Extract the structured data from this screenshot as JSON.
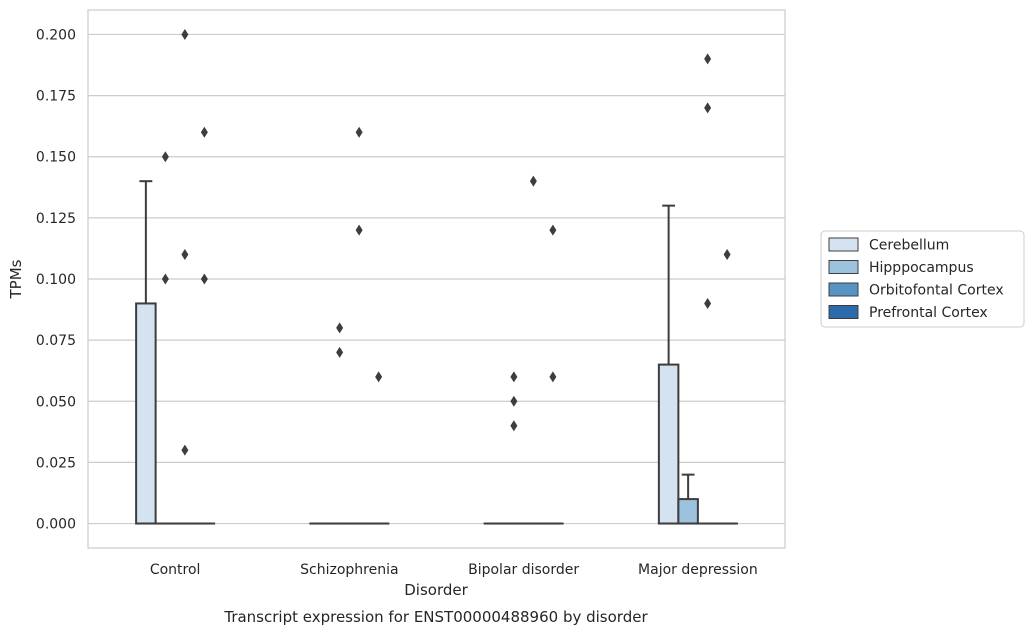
{
  "chart_data": {
    "type": "box",
    "title": "Transcript expression for ENST00000488960 by disorder",
    "xlabel": "Disorder",
    "ylabel": "TPMs",
    "ylim": [
      -0.01,
      0.21
    ],
    "yticks": [
      0.0,
      0.025,
      0.05,
      0.075,
      0.1,
      0.125,
      0.15,
      0.175,
      0.2
    ],
    "ytick_labels": [
      "0.000",
      "0.025",
      "0.050",
      "0.075",
      "0.100",
      "0.125",
      "0.150",
      "0.175",
      "0.200"
    ],
    "grid": true,
    "legend_position": "right",
    "categories": [
      "Control",
      "Schizophrenia",
      "Bipolar disorder",
      "Major depression"
    ],
    "series": [
      {
        "name": "Cerebellum",
        "color": "#d5e3f1"
      },
      {
        "name": "Hipppocampus",
        "color": "#9cc2de"
      },
      {
        "name": "Orbitofontal Cortex",
        "color": "#5894c3"
      },
      {
        "name": "Prefrontal Cortex",
        "color": "#2c6aab"
      }
    ],
    "boxes": [
      {
        "category": 0,
        "series": 0,
        "q1": 0.0,
        "median": 0.0,
        "q3": 0.09,
        "whisker_low": 0.0,
        "whisker_high": 0.14
      },
      {
        "category": 0,
        "series": 1,
        "q1": 0.0,
        "median": 0.0,
        "q3": 0.0,
        "whisker_low": 0.0,
        "whisker_high": 0.0
      },
      {
        "category": 0,
        "series": 2,
        "q1": 0.0,
        "median": 0.0,
        "q3": 0.0,
        "whisker_low": 0.0,
        "whisker_high": 0.0
      },
      {
        "category": 0,
        "series": 3,
        "q1": 0.0,
        "median": 0.0,
        "q3": 0.0,
        "whisker_low": 0.0,
        "whisker_high": 0.0
      },
      {
        "category": 1,
        "series": 0,
        "q1": 0.0,
        "median": 0.0,
        "q3": 0.0,
        "whisker_low": 0.0,
        "whisker_high": 0.0
      },
      {
        "category": 1,
        "series": 1,
        "q1": 0.0,
        "median": 0.0,
        "q3": 0.0,
        "whisker_low": 0.0,
        "whisker_high": 0.0
      },
      {
        "category": 1,
        "series": 2,
        "q1": 0.0,
        "median": 0.0,
        "q3": 0.0,
        "whisker_low": 0.0,
        "whisker_high": 0.0
      },
      {
        "category": 1,
        "series": 3,
        "q1": 0.0,
        "median": 0.0,
        "q3": 0.0,
        "whisker_low": 0.0,
        "whisker_high": 0.0
      },
      {
        "category": 2,
        "series": 0,
        "q1": 0.0,
        "median": 0.0,
        "q3": 0.0,
        "whisker_low": 0.0,
        "whisker_high": 0.0
      },
      {
        "category": 2,
        "series": 1,
        "q1": 0.0,
        "median": 0.0,
        "q3": 0.0,
        "whisker_low": 0.0,
        "whisker_high": 0.0
      },
      {
        "category": 2,
        "series": 2,
        "q1": 0.0,
        "median": 0.0,
        "q3": 0.0,
        "whisker_low": 0.0,
        "whisker_high": 0.0
      },
      {
        "category": 2,
        "series": 3,
        "q1": 0.0,
        "median": 0.0,
        "q3": 0.0,
        "whisker_low": 0.0,
        "whisker_high": 0.0
      },
      {
        "category": 3,
        "series": 0,
        "q1": 0.0,
        "median": 0.0,
        "q3": 0.065,
        "whisker_low": 0.0,
        "whisker_high": 0.13
      },
      {
        "category": 3,
        "series": 1,
        "q1": 0.0,
        "median": 0.0,
        "q3": 0.01,
        "whisker_low": 0.0,
        "whisker_high": 0.02
      },
      {
        "category": 3,
        "series": 2,
        "q1": 0.0,
        "median": 0.0,
        "q3": 0.0,
        "whisker_low": 0.0,
        "whisker_high": 0.0
      },
      {
        "category": 3,
        "series": 3,
        "q1": 0.0,
        "median": 0.0,
        "q3": 0.0,
        "whisker_low": 0.0,
        "whisker_high": 0.0
      }
    ],
    "outliers": [
      {
        "category": 0,
        "series": 1,
        "values": [
          0.15,
          0.1
        ]
      },
      {
        "category": 0,
        "series": 2,
        "values": [
          0.2,
          0.11,
          0.03
        ]
      },
      {
        "category": 0,
        "series": 3,
        "values": [
          0.16,
          0.1
        ]
      },
      {
        "category": 1,
        "series": 1,
        "values": [
          0.08,
          0.07
        ]
      },
      {
        "category": 1,
        "series": 2,
        "values": [
          0.16,
          0.12
        ]
      },
      {
        "category": 1,
        "series": 3,
        "values": [
          0.06
        ]
      },
      {
        "category": 2,
        "series": 1,
        "values": [
          0.06,
          0.05,
          0.04
        ]
      },
      {
        "category": 2,
        "series": 2,
        "values": [
          0.14
        ]
      },
      {
        "category": 2,
        "series": 3,
        "values": [
          0.12,
          0.06
        ]
      },
      {
        "category": 3,
        "series": 2,
        "values": [
          0.19,
          0.17,
          0.09
        ]
      },
      {
        "category": 3,
        "series": 3,
        "values": [
          0.11
        ]
      }
    ]
  }
}
